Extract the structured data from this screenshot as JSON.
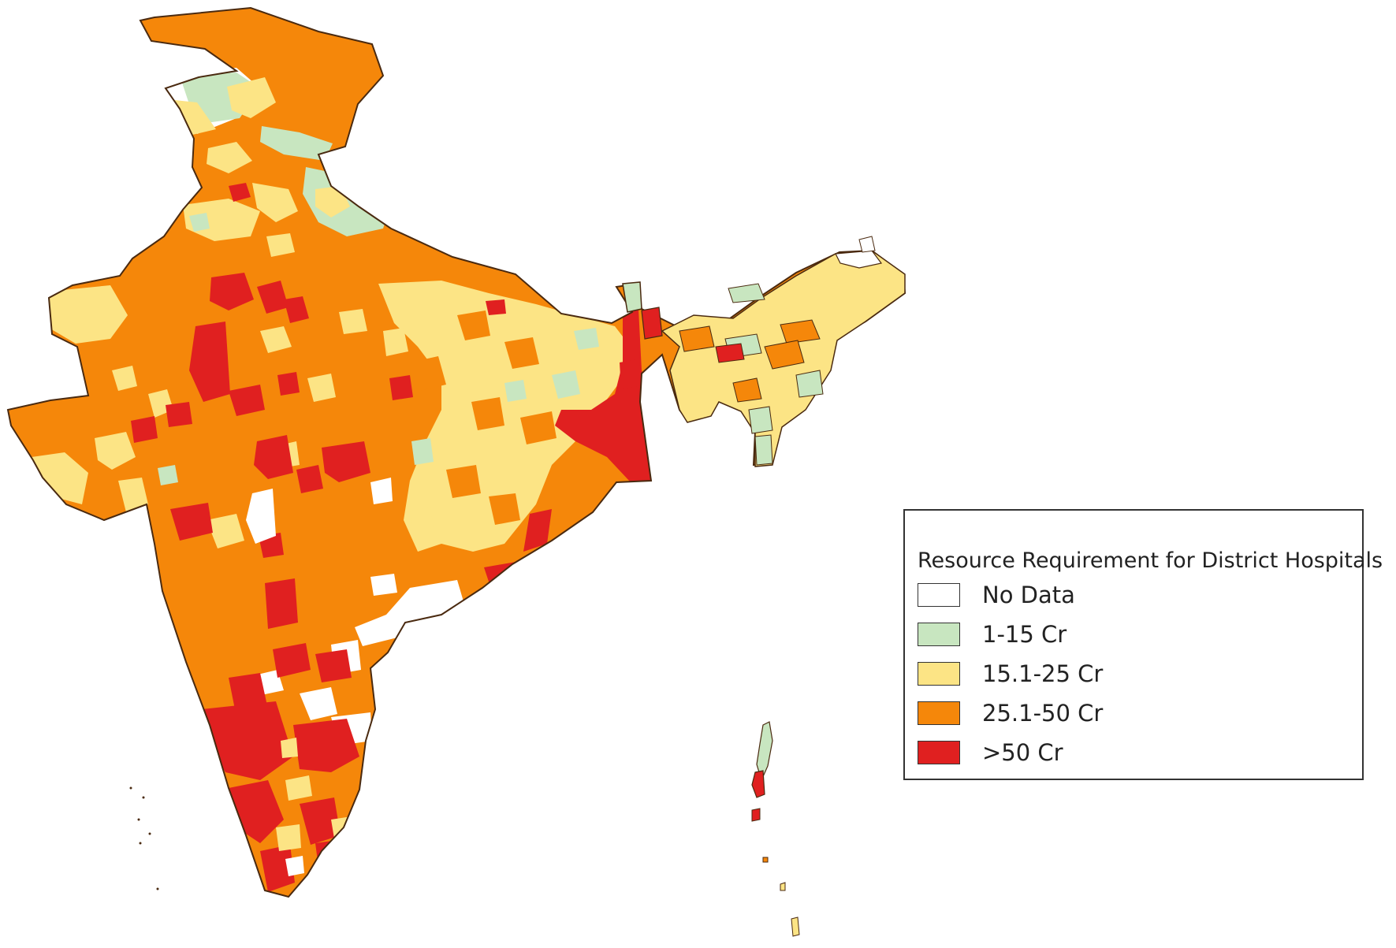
{
  "map": {
    "country": "India",
    "unit_level": "district",
    "colors": {
      "no_data": "#ffffff",
      "low": "#c8e6c0",
      "mid": "#fce485",
      "high": "#f5870a",
      "very_high": "#e02020",
      "boundary": "#4a2a10",
      "outline": "#333333"
    }
  },
  "legend": {
    "title": "Resource Requirement for District Hospitals",
    "items": [
      {
        "label": "No Data",
        "color": "#ffffff"
      },
      {
        "label": "1-15 Cr",
        "color": "#c8e6c0"
      },
      {
        "label": "15.1-25 Cr",
        "color": "#fce485"
      },
      {
        "label": "25.1-50 Cr",
        "color": "#f5870a"
      },
      {
        "label": ">50 Cr",
        "color": "#e02020"
      }
    ]
  }
}
